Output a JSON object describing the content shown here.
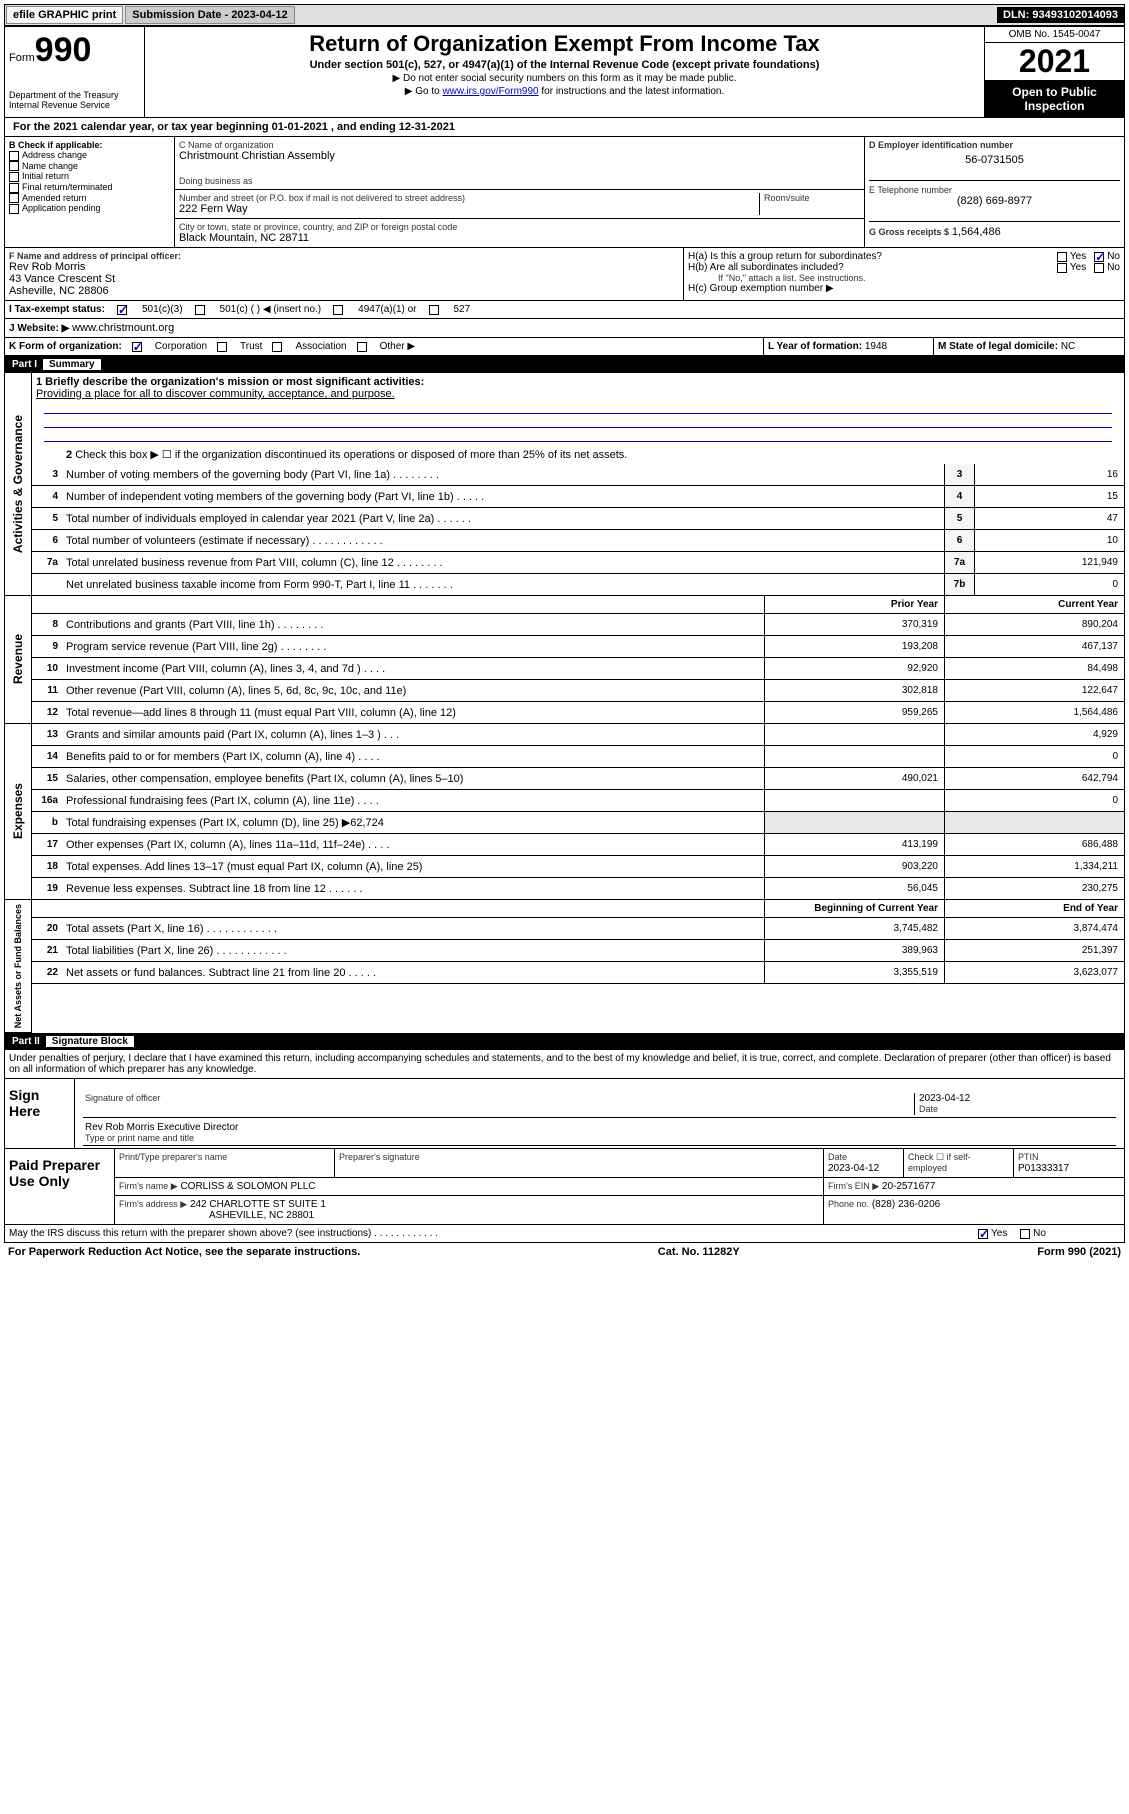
{
  "topbar": {
    "efile": "efile GRAPHIC print",
    "submission_label": "Submission Date - 2023-04-12",
    "dln": "DLN: 93493102014093"
  },
  "header": {
    "form_label": "Form",
    "form_number": "990",
    "title": "Return of Organization Exempt From Income Tax",
    "subtitle": "Under section 501(c), 527, or 4947(a)(1) of the Internal Revenue Code (except private foundations)",
    "instruction1": "▶ Do not enter social security numbers on this form as it may be made public.",
    "instruction2_pre": "▶ Go to ",
    "instruction2_link": "www.irs.gov/Form990",
    "instruction2_post": " for instructions and the latest information.",
    "dept": "Department of the Treasury",
    "irs": "Internal Revenue Service",
    "omb": "OMB No. 1545-0047",
    "year": "2021",
    "inspection": "Open to Public Inspection"
  },
  "line_a": "For the 2021 calendar year, or tax year beginning 01-01-2021   , and ending 12-31-2021",
  "section_b": {
    "header": "B Check if applicable:",
    "items": [
      "Address change",
      "Name change",
      "Initial return",
      "Final return/terminated",
      "Amended return",
      "Application pending"
    ]
  },
  "section_c": {
    "name_label": "C Name of organization",
    "name": "Christmount Christian Assembly",
    "dba_label": "Doing business as",
    "dba": "",
    "street_label": "Number and street (or P.O. box if mail is not delivered to street address)",
    "room_label": "Room/suite",
    "street": "222 Fern Way",
    "city_label": "City or town, state or province, country, and ZIP or foreign postal code",
    "city": "Black Mountain, NC  28711"
  },
  "section_d": {
    "ein_label": "D Employer identification number",
    "ein": "56-0731505",
    "phone_label": "E Telephone number",
    "phone": "(828) 669-8977",
    "gross_label": "G Gross receipts $",
    "gross": "1,564,486"
  },
  "section_f": {
    "label": "F  Name and address of principal officer:",
    "name": "Rev Rob Morris",
    "addr1": "43 Vance Crescent St",
    "addr2": "Asheville, NC  28806"
  },
  "section_h": {
    "ha_label": "H(a)  Is this a group return for subordinates?",
    "hb_label": "H(b)  Are all subordinates included?",
    "hb_note": "If \"No,\" attach a list. See instructions.",
    "hc_label": "H(c)  Group exemption number ▶",
    "yes": "Yes",
    "no": "No"
  },
  "tax_status": {
    "label": "I     Tax-exempt status:",
    "opt1": "501(c)(3)",
    "opt2": "501(c) (  ) ◀ (insert no.)",
    "opt3": "4947(a)(1) or",
    "opt4": "527"
  },
  "website": {
    "label": "J    Website: ▶",
    "value": "www.christmount.org"
  },
  "section_k": {
    "label": "K Form of organization:",
    "opts": [
      "Corporation",
      "Trust",
      "Association",
      "Other ▶"
    ]
  },
  "section_l": {
    "label": "L Year of formation:",
    "value": "1948"
  },
  "section_m": {
    "label": "M State of legal domicile:",
    "value": "NC"
  },
  "part1": {
    "label": "Part I",
    "title": "Summary",
    "line1_label": "1   Briefly describe the organization's mission or most significant activities:",
    "line1_text": "Providing a place for all to discover community, acceptance, and purpose.",
    "line2": "Check this box ▶ ☐  if the organization discontinued its operations or disposed of more than 25% of its net assets.",
    "governance_label": "Activities & Governance",
    "revenue_label": "Revenue",
    "expenses_label": "Expenses",
    "netassets_label": "Net Assets or Fund Balances",
    "col_prior": "Prior Year",
    "col_current": "Current Year",
    "col_boy": "Beginning of Current Year",
    "col_eoy": "End of Year",
    "lines_gov": [
      {
        "num": "3",
        "text": "Number of voting members of the governing body (Part VI, line 1a)   .    .    .    .    .    .    .    .",
        "box": "3",
        "val": "16"
      },
      {
        "num": "4",
        "text": "Number of independent voting members of the governing body (Part VI, line 1b)   .    .    .    .    .",
        "box": "4",
        "val": "15"
      },
      {
        "num": "5",
        "text": "Total number of individuals employed in calendar year 2021 (Part V, line 2a)  .    .    .    .    .    .",
        "box": "5",
        "val": "47"
      },
      {
        "num": "6",
        "text": "Total number of volunteers (estimate if necessary)   .    .    .    .    .    .    .    .    .    .    .    .",
        "box": "6",
        "val": "10"
      },
      {
        "num": "7a",
        "text": "Total unrelated business revenue from Part VIII, column (C), line 12   .    .    .    .    .    .    .    .",
        "box": "7a",
        "val": "121,949"
      },
      {
        "num": "",
        "text": "Net unrelated business taxable income from Form 990-T, Part I, line 11   .    .    .    .    .    .    .",
        "box": "7b",
        "val": "0"
      }
    ],
    "lines_rev": [
      {
        "num": "8",
        "text": "Contributions and grants (Part VIII, line 1h)   .    .    .    .    .    .    .    .",
        "prior": "370,319",
        "curr": "890,204"
      },
      {
        "num": "9",
        "text": "Program service revenue (Part VIII, line 2g)   .    .    .    .    .    .    .    .",
        "prior": "193,208",
        "curr": "467,137"
      },
      {
        "num": "10",
        "text": "Investment income (Part VIII, column (A), lines 3, 4, and 7d )   .    .    .    .",
        "prior": "92,920",
        "curr": "84,498"
      },
      {
        "num": "11",
        "text": "Other revenue (Part VIII, column (A), lines 5, 6d, 8c, 9c, 10c, and 11e)",
        "prior": "302,818",
        "curr": "122,647"
      },
      {
        "num": "12",
        "text": "Total revenue—add lines 8 through 11 (must equal Part VIII, column (A), line 12)",
        "prior": "959,265",
        "curr": "1,564,486"
      }
    ],
    "lines_exp": [
      {
        "num": "13",
        "text": "Grants and similar amounts paid (Part IX, column (A), lines 1–3 )   .    .    .",
        "prior": "",
        "curr": "4,929"
      },
      {
        "num": "14",
        "text": "Benefits paid to or for members (Part IX, column (A), line 4)   .    .    .    .",
        "prior": "",
        "curr": "0"
      },
      {
        "num": "15",
        "text": "Salaries, other compensation, employee benefits (Part IX, column (A), lines 5–10)",
        "prior": "490,021",
        "curr": "642,794"
      },
      {
        "num": "16a",
        "text": "Professional fundraising fees (Part IX, column (A), line 11e)   .    .    .    .",
        "prior": "",
        "curr": "0"
      },
      {
        "num": "b",
        "text": "Total fundraising expenses (Part IX, column (D), line 25) ▶62,724",
        "prior": "shaded",
        "curr": "shaded"
      },
      {
        "num": "17",
        "text": "Other expenses (Part IX, column (A), lines 11a–11d, 11f–24e)   .    .    .    .",
        "prior": "413,199",
        "curr": "686,488"
      },
      {
        "num": "18",
        "text": "Total expenses. Add lines 13–17 (must equal Part IX, column (A), line 25)",
        "prior": "903,220",
        "curr": "1,334,211"
      },
      {
        "num": "19",
        "text": "Revenue less expenses. Subtract line 18 from line 12   .    .    .    .    .    .",
        "prior": "56,045",
        "curr": "230,275"
      }
    ],
    "lines_net": [
      {
        "num": "20",
        "text": "Total assets (Part X, line 16)   .    .    .    .    .    .    .    .    .    .    .    .",
        "prior": "3,745,482",
        "curr": "3,874,474"
      },
      {
        "num": "21",
        "text": "Total liabilities (Part X, line 26)   .    .    .    .    .    .    .    .    .    .    .    .",
        "prior": "389,963",
        "curr": "251,397"
      },
      {
        "num": "22",
        "text": "Net assets or fund balances. Subtract line 21 from line 20   .    .    .    .    .",
        "prior": "3,355,519",
        "curr": "3,623,077"
      }
    ]
  },
  "part2": {
    "label": "Part II",
    "title": "Signature Block",
    "penalty": "Under penalties of perjury, I declare that I have examined this return, including accompanying schedules and statements, and to the best of my knowledge and belief, it is true, correct, and complete. Declaration of preparer (other than officer) is based on all information of which preparer has any knowledge.",
    "sign_here": "Sign Here",
    "sig_officer": "Signature of officer",
    "sig_date": "2023-04-12",
    "date_label": "Date",
    "officer_name": "Rev Rob Morris  Executive Director",
    "type_label": "Type or print name and title",
    "paid_label": "Paid Preparer Use Only",
    "prep_name_label": "Print/Type preparer's name",
    "prep_sig_label": "Preparer's signature",
    "prep_date_label": "Date",
    "prep_date": "2023-04-12",
    "check_if": "Check ☐ if self-employed",
    "ptin_label": "PTIN",
    "ptin": "P01333317",
    "firm_name_label": "Firm's name    ▶",
    "firm_name": "CORLISS & SOLOMON PLLC",
    "firm_ein_label": "Firm's EIN ▶",
    "firm_ein": "20-2571677",
    "firm_addr_label": "Firm's address ▶",
    "firm_addr1": "242 CHARLOTTE ST SUITE 1",
    "firm_addr2": "ASHEVILLE, NC  28801",
    "firm_phone_label": "Phone no.",
    "firm_phone": "(828) 236-0206",
    "may_irs": "May the IRS discuss this return with the preparer shown above? (see instructions)   .    .    .    .    .    .    .    .    .    .    .    ."
  },
  "footer": {
    "paperwork": "For Paperwork Reduction Act Notice, see the separate instructions.",
    "catno": "Cat. No. 11282Y",
    "formref": "Form 990 (2021)"
  }
}
